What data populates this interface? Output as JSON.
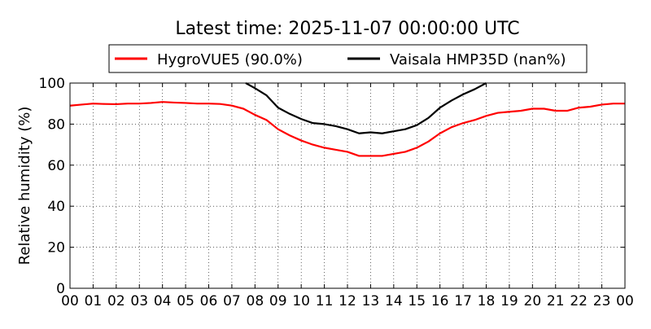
{
  "chart_data": {
    "type": "line",
    "title": "Latest time: 2025-11-07 00:00:00 UTC",
    "xlabel": "",
    "ylabel": "Relative humidity (%)",
    "xlim": [
      0,
      24
    ],
    "ylim": [
      0,
      100
    ],
    "grid": true,
    "legend_position": "top",
    "x_tick_labels": [
      "00",
      "01",
      "02",
      "03",
      "04",
      "05",
      "06",
      "07",
      "08",
      "09",
      "10",
      "11",
      "12",
      "13",
      "14",
      "15",
      "16",
      "17",
      "18",
      "19",
      "20",
      "21",
      "22",
      "23",
      "00"
    ],
    "y_tick_labels": [
      "0",
      "20",
      "40",
      "60",
      "80",
      "100"
    ],
    "series": [
      {
        "name": "HygroVUE5 (90.0%)",
        "color": "#ff0000",
        "points": [
          [
            0.0,
            89.0
          ],
          [
            0.5,
            89.5
          ],
          [
            1.0,
            90.0
          ],
          [
            1.5,
            89.8
          ],
          [
            2.0,
            89.7
          ],
          [
            2.5,
            90.0
          ],
          [
            3.0,
            90.0
          ],
          [
            3.5,
            90.3
          ],
          [
            4.0,
            90.8
          ],
          [
            4.5,
            90.5
          ],
          [
            5.0,
            90.3
          ],
          [
            5.5,
            90.0
          ],
          [
            6.0,
            90.0
          ],
          [
            6.5,
            89.8
          ],
          [
            7.0,
            89.0
          ],
          [
            7.5,
            87.5
          ],
          [
            8.0,
            84.5
          ],
          [
            8.5,
            82.0
          ],
          [
            9.0,
            77.5
          ],
          [
            9.5,
            74.5
          ],
          [
            10.0,
            72.0
          ],
          [
            10.5,
            70.0
          ],
          [
            11.0,
            68.5
          ],
          [
            11.5,
            67.5
          ],
          [
            12.0,
            66.5
          ],
          [
            12.5,
            64.5
          ],
          [
            13.0,
            64.5
          ],
          [
            13.5,
            64.5
          ],
          [
            14.0,
            65.5
          ],
          [
            14.5,
            66.5
          ],
          [
            15.0,
            68.5
          ],
          [
            15.5,
            71.5
          ],
          [
            16.0,
            75.5
          ],
          [
            16.5,
            78.5
          ],
          [
            17.0,
            80.5
          ],
          [
            17.5,
            82.0
          ],
          [
            18.0,
            84.0
          ],
          [
            18.5,
            85.5
          ],
          [
            19.0,
            86.0
          ],
          [
            19.5,
            86.5
          ],
          [
            20.0,
            87.5
          ],
          [
            20.5,
            87.5
          ],
          [
            21.0,
            86.5
          ],
          [
            21.5,
            86.5
          ],
          [
            22.0,
            88.0
          ],
          [
            22.5,
            88.5
          ],
          [
            23.0,
            89.5
          ],
          [
            23.5,
            90.0
          ],
          [
            24.0,
            90.0
          ]
        ]
      },
      {
        "name": "Vaisala HMP35D (nan%)",
        "color": "#000000",
        "points": [
          [
            7.6,
            100.0
          ],
          [
            8.0,
            97.5
          ],
          [
            8.5,
            94.0
          ],
          [
            9.0,
            88.0
          ],
          [
            9.5,
            85.0
          ],
          [
            10.0,
            82.5
          ],
          [
            10.5,
            80.5
          ],
          [
            11.0,
            80.0
          ],
          [
            11.5,
            79.0
          ],
          [
            12.0,
            77.5
          ],
          [
            12.5,
            75.5
          ],
          [
            13.0,
            76.0
          ],
          [
            13.5,
            75.5
          ],
          [
            14.0,
            76.5
          ],
          [
            14.5,
            77.5
          ],
          [
            15.0,
            79.5
          ],
          [
            15.5,
            83.0
          ],
          [
            16.0,
            88.0
          ],
          [
            16.5,
            91.5
          ],
          [
            17.0,
            94.5
          ],
          [
            17.5,
            97.0
          ],
          [
            18.0,
            100.0
          ]
        ]
      }
    ]
  }
}
